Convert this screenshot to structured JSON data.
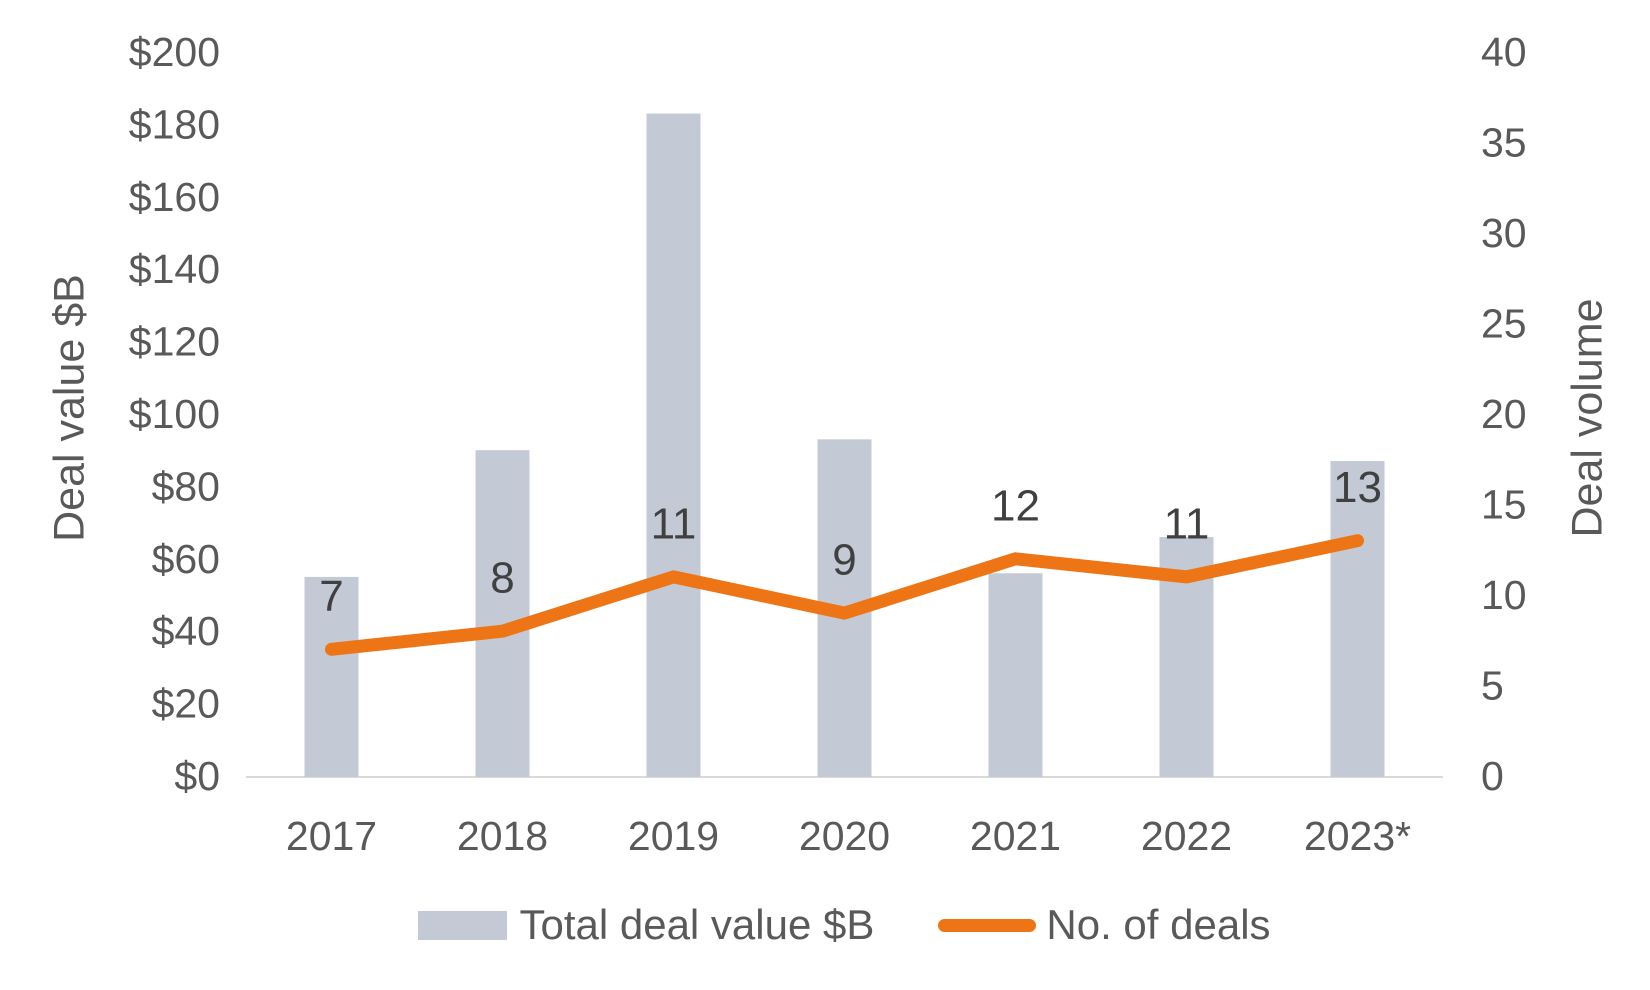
{
  "chart_data": {
    "type": "bar",
    "subtype": "combo-bar-line-dual-axis",
    "categories": [
      "2017",
      "2018",
      "2019",
      "2020",
      "2021",
      "2022",
      "2023*"
    ],
    "series": [
      {
        "name": "Total deal value $B",
        "type": "bar",
        "axis": "left",
        "values": [
          55,
          90,
          183,
          93,
          56,
          66,
          87
        ],
        "color": "#C3C9D5"
      },
      {
        "name": "No. of deals",
        "type": "line",
        "axis": "right",
        "values": [
          7,
          8,
          11,
          9,
          12,
          11,
          13
        ],
        "data_labels": [
          7,
          8,
          11,
          9,
          12,
          11,
          13
        ],
        "color": "#EE7515"
      }
    ],
    "left_axis": {
      "title": "Deal value $B",
      "min": 0,
      "max": 200,
      "step": 20,
      "tick_labels": [
        "$0",
        "$20",
        "$40",
        "$60",
        "$80",
        "$100",
        "$120",
        "$140",
        "$160",
        "$180",
        "$200"
      ]
    },
    "right_axis": {
      "title": "Deal volume",
      "min": 0,
      "max": 40,
      "step": 5,
      "tick_labels": [
        "0",
        "5",
        "10",
        "15",
        "20",
        "25",
        "30",
        "35",
        "40"
      ]
    },
    "grid": false,
    "legend_position": "bottom",
    "title": ""
  },
  "colors": {
    "background": "#ffffff",
    "axis_line": "#D9D9D9",
    "tick_text": "#595959",
    "data_label_text": "#404040",
    "bar_fill": "#C3C9D5",
    "line_stroke": "#EE7515"
  }
}
